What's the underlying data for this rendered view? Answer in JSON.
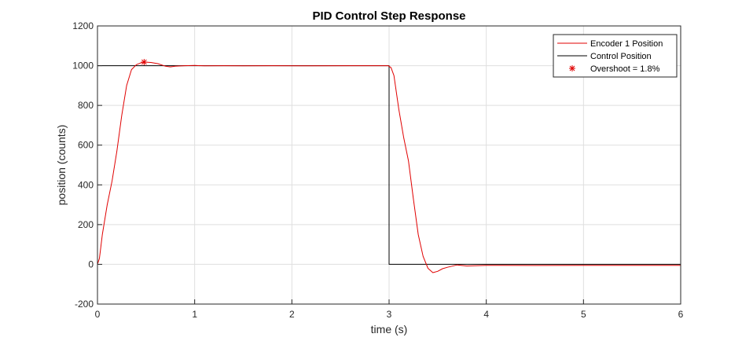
{
  "chart_data": {
    "type": "line",
    "title": "PID Control Step Response",
    "xlabel": "time (s)",
    "ylabel": "position (counts)",
    "xlim": [
      0,
      6
    ],
    "ylim": [
      -200,
      1200
    ],
    "xticks": [
      0,
      1,
      2,
      3,
      4,
      5,
      6
    ],
    "yticks": [
      -200,
      0,
      200,
      400,
      600,
      800,
      1000,
      1200
    ],
    "xtick_labels": [
      "0",
      "1",
      "2",
      "3",
      "4",
      "5",
      "6"
    ],
    "ytick_labels": [
      "-200",
      "0",
      "200",
      "400",
      "600",
      "800",
      "1000",
      "1200"
    ],
    "grid": true,
    "legend_position": "top-right",
    "series": [
      {
        "name": "Encoder 1 Position",
        "color": "#e00000",
        "style": "line",
        "x": [
          0,
          0.02,
          0.05,
          0.1,
          0.15,
          0.2,
          0.25,
          0.3,
          0.35,
          0.4,
          0.45,
          0.48,
          0.55,
          0.62,
          0.7,
          0.75,
          0.8,
          0.9,
          1.0,
          1.1,
          1.3,
          1.5,
          1.8,
          2.2,
          2.6,
          2.99,
          3.02,
          3.05,
          3.1,
          3.15,
          3.2,
          3.25,
          3.3,
          3.35,
          3.4,
          3.45,
          3.5,
          3.55,
          3.6,
          3.7,
          3.8,
          4.0,
          4.5,
          5.0,
          5.5,
          6.0
        ],
        "y": [
          0,
          30,
          150,
          300,
          420,
          570,
          750,
          900,
          980,
          1005,
          1015,
          1018,
          1016,
          1010,
          997,
          994,
          997,
          1000,
          1001,
          999,
          1000,
          999,
          1000,
          999,
          1000,
          1000,
          990,
          950,
          780,
          640,
          520,
          330,
          150,
          40,
          -20,
          -42,
          -35,
          -22,
          -15,
          -3,
          -8,
          -5,
          -6,
          -5,
          -5,
          -5
        ]
      },
      {
        "name": "Control Position",
        "color": "#000000",
        "style": "line",
        "x": [
          0,
          3.0,
          3.0,
          6.0
        ],
        "y": [
          1000,
          1000,
          0,
          0
        ]
      },
      {
        "name": "Overshoot = 1.8%",
        "color": "#e00000",
        "style": "marker-asterisk",
        "x": [
          0.48
        ],
        "y": [
          1018
        ]
      }
    ]
  }
}
